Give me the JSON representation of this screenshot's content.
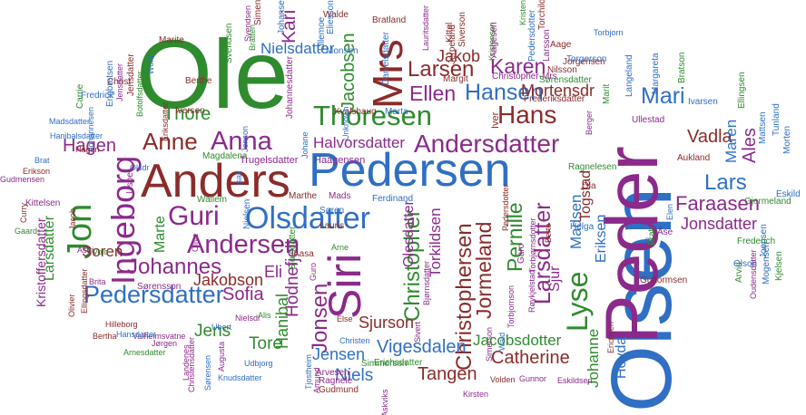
{
  "palette": {
    "green": "#2e8b2e",
    "blue": "#2f6fc4",
    "purple": "#8b2a8b",
    "darkred": "#8b2b2b"
  },
  "words": [
    {
      "t": "Ole",
      "c": "green"
    },
    {
      "t": "Olsen",
      "c": "blue"
    },
    {
      "t": "Peder",
      "c": "purple"
    },
    {
      "t": "Pedersen",
      "c": "blue"
    },
    {
      "t": "Anders",
      "c": "darkred"
    },
    {
      "t": "Siri",
      "c": "purple"
    },
    {
      "t": "Mrs",
      "c": "darkred"
    },
    {
      "t": "Olsdatter",
      "c": "blue"
    },
    {
      "t": "Andersdatter",
      "c": "purple"
    },
    {
      "t": "Ingeborg",
      "c": "purple"
    },
    {
      "t": "Jon",
      "c": "green"
    },
    {
      "t": "Anna",
      "c": "purple"
    },
    {
      "t": "Anne",
      "c": "darkred"
    },
    {
      "t": "Thoresen",
      "c": "green"
    },
    {
      "t": "Hans",
      "c": "darkred"
    },
    {
      "t": "Hansen",
      "c": "blue"
    },
    {
      "t": "Karen",
      "c": "purple"
    },
    {
      "t": "Larsen",
      "c": "darkred"
    },
    {
      "t": "Ellen",
      "c": "purple"
    },
    {
      "t": "Andersen",
      "c": "purple"
    },
    {
      "t": "Guri",
      "c": "purple"
    },
    {
      "t": "Johannes",
      "c": "purple"
    },
    {
      "t": "Pedersdatter",
      "c": "blue"
    },
    {
      "t": "Christopher",
      "c": "green"
    },
    {
      "t": "Christophersen",
      "c": "darkred"
    },
    {
      "t": "Jormeland",
      "c": "darkred"
    },
    {
      "t": "Lyse",
      "c": "green"
    },
    {
      "t": "Larsdatter",
      "c": "purple"
    },
    {
      "t": "Pernille",
      "c": "green"
    },
    {
      "t": "Jonsen",
      "c": "purple"
    },
    {
      "t": "Mari",
      "c": "blue"
    },
    {
      "t": "Thore",
      "c": "green"
    },
    {
      "t": "Jakob",
      "c": "darkred"
    },
    {
      "t": "Jacobsen",
      "c": "green"
    },
    {
      "t": "Nielsdatter",
      "c": "blue"
    },
    {
      "t": "Kari",
      "c": "purple"
    },
    {
      "t": "Halvorsdatter",
      "c": "purple"
    },
    {
      "t": "Mortensdr",
      "c": "darkred"
    },
    {
      "t": "Vadla",
      "c": "darkred"
    },
    {
      "t": "Lars",
      "c": "blue"
    },
    {
      "t": "Faraasen",
      "c": "purple"
    },
    {
      "t": "Jonsdatter",
      "c": "purple"
    },
    {
      "t": "Ales",
      "c": "purple"
    },
    {
      "t": "Maren",
      "c": "blue"
    },
    {
      "t": "Johanne",
      "c": "green"
    },
    {
      "t": "Hovda",
      "c": "blue"
    },
    {
      "t": "Catherine",
      "c": "darkred"
    },
    {
      "t": "Jacobsdotter",
      "c": "green"
    },
    {
      "t": "Tangen",
      "c": "darkred"
    },
    {
      "t": "Vigesdalen",
      "c": "blue"
    },
    {
      "t": "Niels",
      "c": "blue"
    },
    {
      "t": "Jensen",
      "c": "blue"
    },
    {
      "t": "Sjurson",
      "c": "darkred"
    },
    {
      "t": "Hodnefjell",
      "c": "purple"
    },
    {
      "t": "Olesdatter",
      "c": "purple"
    },
    {
      "t": "Torkildsen",
      "c": "purple"
    },
    {
      "t": "Hanibal",
      "c": "green"
    },
    {
      "t": "Tore",
      "c": "green"
    },
    {
      "t": "Sofia",
      "c": "purple"
    },
    {
      "t": "Jens",
      "c": "green"
    },
    {
      "t": "Jakobson",
      "c": "darkred"
    },
    {
      "t": "Eli",
      "c": "purple"
    },
    {
      "t": "Soren",
      "c": "darkred"
    },
    {
      "t": "Marte",
      "c": "green"
    },
    {
      "t": "Larsdatter",
      "c": "green"
    },
    {
      "t": "Kristoffersdatter",
      "c": "purple"
    },
    {
      "t": "Hagen",
      "c": "purple"
    },
    {
      "t": "Madsen",
      "c": "blue"
    },
    {
      "t": "Sjur",
      "c": "purple"
    },
    {
      "t": "Togstad",
      "c": "darkred"
    },
    {
      "t": "Eriksen",
      "c": "blue"
    },
    {
      "t": "Magdalena",
      "c": "green"
    },
    {
      "t": "Trugelsdatter",
      "c": "purple"
    },
    {
      "t": "Haagensen",
      "c": "purple"
    },
    {
      "t": "Kvalshaug",
      "c": "darkred"
    },
    {
      "t": "Marta",
      "c": "blue"
    },
    {
      "t": "Iver",
      "c": "darkred"
    },
    {
      "t": "Margit",
      "c": "darkred"
    },
    {
      "t": "Christopher-Mrs",
      "c": "purple"
    },
    {
      "t": "Sørensdatter",
      "c": "green"
    },
    {
      "t": "Frederiksdatter",
      "c": "darkred"
    },
    {
      "t": "Jorgensen",
      "c": "darkred"
    },
    {
      "t": "Berthe",
      "c": "darkred"
    },
    {
      "t": "Iversen",
      "c": "darkred"
    },
    {
      "t": "Eriksdatter",
      "c": "darkred"
    },
    {
      "t": "Svendsen",
      "c": "green"
    },
    {
      "t": "Johannesdatter",
      "c": "purple"
    },
    {
      "t": "Olsdr",
      "c": "blue"
    },
    {
      "t": "Kittelsen",
      "c": "purple"
    },
    {
      "t": "Lisbet",
      "c": "purple"
    },
    {
      "t": "Jacob",
      "c": "darkred"
    },
    {
      "t": "Wallem",
      "c": "green"
    },
    {
      "t": "Nielsen",
      "c": "blue"
    },
    {
      "t": "Olive",
      "c": "purple"
    },
    {
      "t": "Marthe",
      "c": "darkred"
    },
    {
      "t": "Mads",
      "c": "purple"
    },
    {
      "t": "Søren",
      "c": "blue"
    },
    {
      "t": "Lauris",
      "c": "darkred"
    },
    {
      "t": "Guro",
      "c": "purple"
    },
    {
      "t": "Arne",
      "c": "green"
    },
    {
      "t": "Ferdinand",
      "c": "blue"
    },
    {
      "t": "Aasa",
      "c": "darkred"
    },
    {
      "t": "Sjursdatter",
      "c": "green"
    },
    {
      "t": "Else",
      "c": "darkred"
    },
    {
      "t": "Christen",
      "c": "blue"
    },
    {
      "t": "Arvesen",
      "c": "purple"
    },
    {
      "t": "Ragnele",
      "c": "purple"
    },
    {
      "t": "Gudmund",
      "c": "darkred"
    },
    {
      "t": "Simmerson",
      "c": "green"
    },
    {
      "t": "Erichsdatter",
      "c": "green"
    },
    {
      "t": "Bjørnsdatter",
      "c": "purple"
    },
    {
      "t": "Sivert",
      "c": "purple"
    },
    {
      "t": "Pedersdotter",
      "c": "darkred"
    },
    {
      "t": "Berte",
      "c": "darkred"
    },
    {
      "t": "Helga",
      "c": "blue"
    },
    {
      "t": "Torbjørnsdotter",
      "c": "purple"
    },
    {
      "t": "Garo",
      "c": "purple"
    },
    {
      "t": "Ola",
      "c": "darkred"
    },
    {
      "t": "Ragnelesen",
      "c": "green"
    },
    {
      "t": "Aukland",
      "c": "darkred"
    },
    {
      "t": "Ellingsen",
      "c": "green"
    },
    {
      "t": "Ivarsen",
      "c": "blue"
    },
    {
      "t": "Elen",
      "c": "blue"
    },
    {
      "t": "Sir",
      "c": "blue"
    },
    {
      "t": "Åse",
      "c": "purple"
    },
    {
      "t": "Bratt",
      "c": "green"
    },
    {
      "t": "Guttormsen",
      "c": "darkred"
    },
    {
      "t": "Mogensen",
      "c": "blue"
    },
    {
      "t": "Arvid",
      "c": "green"
    },
    {
      "t": "Oudensdatter",
      "c": "purple"
    },
    {
      "t": "Olson",
      "c": "blue"
    },
    {
      "t": "Frederich",
      "c": "green"
    },
    {
      "t": "Tunland",
      "c": "blue"
    },
    {
      "t": "Morten",
      "c": "blue"
    },
    {
      "t": "Gjormeland",
      "c": "green"
    },
    {
      "t": "Eskild",
      "c": "blue"
    },
    {
      "t": "Joensen",
      "c": "blue"
    },
    {
      "t": "Kjelsen",
      "c": "green"
    },
    {
      "t": "Mattsen",
      "c": "blue"
    },
    {
      "t": "Torgerson",
      "c": "blue"
    },
    {
      "t": "Nilsson",
      "c": "darkred"
    },
    {
      "t": "Aage",
      "c": "darkred"
    },
    {
      "t": "Torchild",
      "c": "darkred"
    },
    {
      "t": "Torbjorn",
      "c": "blue"
    },
    {
      "t": "Langeland",
      "c": "blue"
    },
    {
      "t": "Margareta",
      "c": "blue"
    },
    {
      "t": "Bratson",
      "c": "green"
    },
    {
      "t": "Ullestad",
      "c": "purple"
    },
    {
      "t": "Marit",
      "c": "green"
    },
    {
      "t": "Berger",
      "c": "purple"
    },
    {
      "t": "Pedersdotter",
      "c": "blue"
    },
    {
      "t": "Kristenson",
      "c": "green"
    },
    {
      "t": "Kristen",
      "c": "green"
    },
    {
      "t": "Jerpeland",
      "c": "darkred"
    },
    {
      "t": "Lauritsdatter",
      "c": "purple"
    },
    {
      "t": "Bratland",
      "c": "darkred"
    },
    {
      "t": "Kittel",
      "c": "darkred"
    },
    {
      "t": "Siverson",
      "c": "darkred"
    },
    {
      "t": "Aagesen",
      "c": "purple"
    },
    {
      "t": "Larsson",
      "c": "purple"
    },
    {
      "t": "Danielsdatter",
      "c": "blue"
    },
    {
      "t": "Walde",
      "c": "darkred"
    },
    {
      "t": "Monsen",
      "c": "blue"
    },
    {
      "t": "Eliesson",
      "c": "blue"
    },
    {
      "t": "Lillemoe",
      "c": "blue"
    },
    {
      "t": "Simen",
      "c": "darkred"
    },
    {
      "t": "Johansen",
      "c": "blue"
    },
    {
      "t": "Bratten",
      "c": "green"
    },
    {
      "t": "Marite",
      "c": "darkred"
    },
    {
      "t": "Svendsen",
      "c": "purple"
    },
    {
      "t": "Christ",
      "c": "darkred"
    },
    {
      "t": "Jensdatter",
      "c": "purple"
    },
    {
      "t": "Fredrick",
      "c": "blue"
    },
    {
      "t": "Carrie",
      "c": "green"
    },
    {
      "t": "Wold",
      "c": "blue"
    },
    {
      "t": "Botolfsdatter",
      "c": "green"
    },
    {
      "t": "Johannesen",
      "c": "blue"
    },
    {
      "t": "Engbretsen",
      "c": "blue"
    },
    {
      "t": "Jensdatter",
      "c": "darkred"
    },
    {
      "t": "Madsdatter",
      "c": "blue"
    },
    {
      "t": "Hanibalsdatter",
      "c": "blue"
    },
    {
      "t": "Brat",
      "c": "blue"
    },
    {
      "t": "Erikson",
      "c": "darkred"
    },
    {
      "t": "Gudmensen",
      "c": "purple"
    },
    {
      "t": "Curry",
      "c": "darkred"
    },
    {
      "t": "Gaard",
      "c": "green"
    },
    {
      "t": "Vold",
      "c": "green"
    },
    {
      "t": "Astri",
      "c": "purple"
    },
    {
      "t": "Brita",
      "c": "purple"
    },
    {
      "t": "Sørensson",
      "c": "purple"
    },
    {
      "t": "Olivier",
      "c": "darkred"
    },
    {
      "t": "Ellingsdatter",
      "c": "darkred"
    },
    {
      "t": "Hilleborg",
      "c": "darkred"
    },
    {
      "t": "Valheimsvatne",
      "c": "purple"
    },
    {
      "t": "Bertha",
      "c": "darkred"
    },
    {
      "t": "Hansdatter",
      "c": "blue"
    },
    {
      "t": "Jørgen",
      "c": "purple"
    },
    {
      "t": "Arnesdatter",
      "c": "green"
    },
    {
      "t": "Nielsdr",
      "c": "purple"
    },
    {
      "t": "Alis",
      "c": "green"
    },
    {
      "t": "Ubert",
      "c": "blue"
    },
    {
      "t": "Udbjorg",
      "c": "blue"
    },
    {
      "t": "Knudsdatter",
      "c": "blue"
    },
    {
      "t": "Augusta",
      "c": "purple"
    },
    {
      "t": "Christensdatter",
      "c": "purple"
    },
    {
      "t": "Sørensen",
      "c": "blue"
    },
    {
      "t": "Landenes",
      "c": "purple"
    },
    {
      "t": "Tjostheim",
      "c": "blue"
    },
    {
      "t": "Amund",
      "c": "purple"
    },
    {
      "t": "Askviks",
      "c": "purple"
    },
    {
      "t": "Kirsten",
      "c": "purple"
    },
    {
      "t": "Volden",
      "c": "darkred"
    },
    {
      "t": "Gunnor",
      "c": "purple"
    },
    {
      "t": "Eskildsen",
      "c": "purple"
    },
    {
      "t": "Erichsen",
      "c": "darkred"
    },
    {
      "t": "Simerson",
      "c": "purple"
    },
    {
      "t": "Wald",
      "c": "blue"
    },
    {
      "t": "Torbjornson",
      "c": "purple"
    },
    {
      "t": "Røykjelstad",
      "c": "purple"
    },
    {
      "t": "Unknown",
      "c": "blue"
    },
    {
      "t": "Johane",
      "c": "blue"
    },
    {
      "t": "Jonson",
      "c": "blue"
    },
    {
      "t": "Isak",
      "c": "blue"
    },
    {
      "t": "Hagen",
      "c": "darkred"
    }
  ]
}
